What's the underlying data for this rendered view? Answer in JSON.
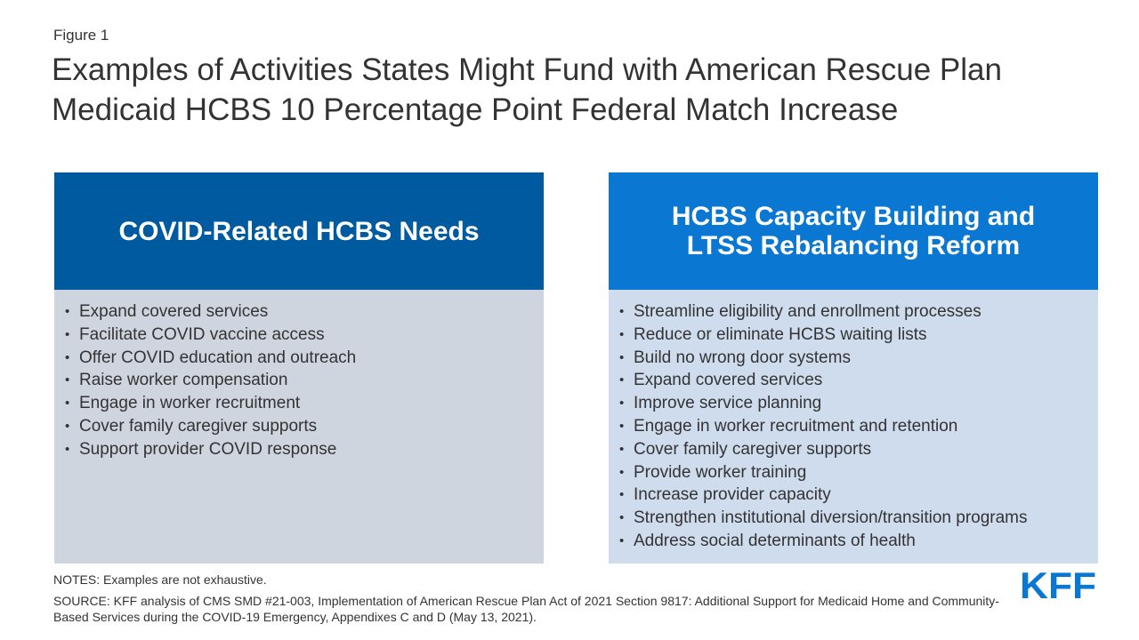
{
  "figure_label": "Figure 1",
  "title_line1": "Examples of Activities States Might Fund with American Rescue Plan",
  "title_line2": "Medicaid HCBS 10 Percentage Point Federal Match Increase",
  "left_panel": {
    "heading": "COVID-Related HCBS Needs",
    "items": [
      "Expand covered services",
      "Facilitate COVID vaccine access",
      "Offer COVID education and outreach",
      "Raise worker compensation",
      "Engage in worker recruitment",
      "Cover family caregiver supports",
      "Support provider COVID response"
    ]
  },
  "right_panel": {
    "heading_line1": "HCBS Capacity Building and",
    "heading_line2": "LTSS Rebalancing Reform",
    "items": [
      "Streamline eligibility and enrollment processes",
      "Reduce or eliminate HCBS waiting lists",
      "Build no wrong door systems",
      "Expand covered services",
      "Improve service planning",
      "Engage in worker recruitment and retention",
      "Cover family caregiver supports",
      "Provide worker training",
      "Increase provider capacity",
      "Strengthen institutional diversion/transition programs",
      "Address social determinants of health"
    ]
  },
  "bullet_char": "•",
  "notes": "NOTES: Examples are not exhaustive.",
  "source": "SOURCE: KFF analysis of CMS SMD #21-003, Implementation of American Rescue Plan Act of 2021 Section 9817: Additional Support for Medicaid Home and Community-Based Services during the COVID-19 Emergency, Appendixes C and D (May 13, 2021).",
  "logo_text": "KFF",
  "colors": {
    "left_header": "#005aa0",
    "right_header": "#0a78d2",
    "left_body": "#cfd5df",
    "right_body": "#cfdcee",
    "logo": "#0a78d2"
  }
}
